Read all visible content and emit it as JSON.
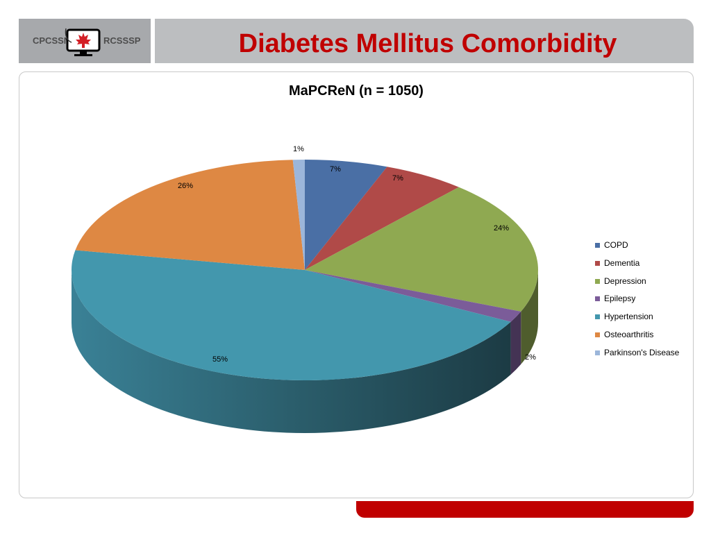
{
  "header": {
    "logo_left_text": "CPCSSN",
    "logo_right_text": "RCSSSP",
    "title": "Diabetes Mellitus Comorbidity"
  },
  "colors": {
    "title": "#c00000",
    "accent_bar": "#c00000",
    "logo_box": "#a7a9ac",
    "title_bar": "#bcbec0"
  },
  "chart_data": {
    "type": "pie",
    "style": "3d",
    "title": "MaPCReN (n = 1050)",
    "legend_position": "right",
    "categories": [
      "COPD",
      "Dementia",
      "Depression",
      "Epilepsy",
      "Hypertension",
      "Osteoarthritis",
      "Parkinson's Disease"
    ],
    "values": [
      7,
      7,
      24,
      2,
      55,
      26,
      1
    ],
    "labels": [
      "7%",
      "7%",
      "24%",
      "2%",
      "55%",
      "26%",
      "1%"
    ],
    "colors": [
      "#4a6fa5",
      "#b04a48",
      "#8fa951",
      "#7b5c99",
      "#4397ad",
      "#de8843",
      "#9cb6da"
    ]
  }
}
